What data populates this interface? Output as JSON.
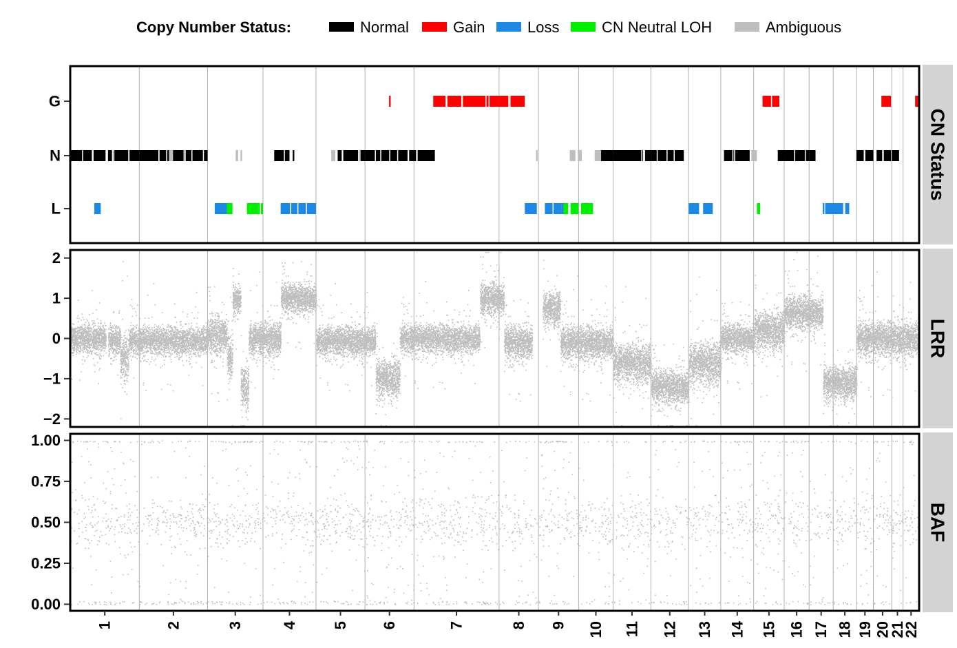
{
  "chart_data": {
    "type": "scatter",
    "legend": {
      "title": "Copy Number Status:",
      "placement": "top",
      "items": [
        {
          "label": "Normal",
          "color": "#000000"
        },
        {
          "label": "Gain",
          "color": "#ff0000"
        },
        {
          "label": "Loss",
          "color": "#1e88e5"
        },
        {
          "label": "CN Neutral LOH",
          "color": "#00ee00"
        },
        {
          "label": "Ambiguous",
          "color": "#bebebe"
        }
      ]
    },
    "colors": {
      "Normal": "#000000",
      "Gain": "#ff0000",
      "Loss": "#1e88e5",
      "LOH": "#00ee00",
      "Ambiguous": "#bebebe",
      "points": "#bebebe",
      "grid": "#b0b0b0",
      "strip_bg": "#d3d3d3"
    },
    "x_axis": {
      "type": "genome",
      "range": [
        0,
        1000
      ],
      "chromosomes": [
        {
          "name": "1",
          "end": 86
        },
        {
          "name": "2",
          "end": 171
        },
        {
          "name": "3",
          "end": 240
        },
        {
          "name": "4",
          "end": 306
        },
        {
          "name": "5",
          "end": 367
        },
        {
          "name": "6",
          "end": 428
        },
        {
          "name": "7",
          "end": 534
        },
        {
          "name": "8",
          "end": 583
        },
        {
          "name": "9",
          "end": 633
        },
        {
          "name": "10",
          "end": 676
        },
        {
          "name": "11",
          "end": 723
        },
        {
          "name": "12",
          "end": 770
        },
        {
          "name": "13",
          "end": 810
        },
        {
          "name": "14",
          "end": 851
        },
        {
          "name": "15",
          "end": 889
        },
        {
          "name": "16",
          "end": 920
        },
        {
          "name": "17",
          "end": 950
        },
        {
          "name": "18",
          "end": 979
        },
        {
          "name": "19",
          "end": 1000
        },
        {
          "name": "20",
          "end": 1023
        },
        {
          "name": "21",
          "end": 1037
        },
        {
          "name": "22",
          "end": 1057
        }
      ],
      "genome_end": 1057
    },
    "panels": [
      {
        "strip": "CN Status",
        "y_ticks": [
          "L",
          "N",
          "G"
        ],
        "segments": [
          {
            "status": "Normal",
            "start": 0,
            "end": 44
          },
          {
            "status": "Normal",
            "start": 47,
            "end": 52
          },
          {
            "status": "Ambiguous",
            "start": 53,
            "end": 55
          },
          {
            "status": "Normal",
            "start": 55,
            "end": 72
          },
          {
            "status": "Ambiguous",
            "start": 72,
            "end": 74
          },
          {
            "status": "Normal",
            "start": 74,
            "end": 86
          },
          {
            "status": "Normal",
            "start": 86,
            "end": 123
          },
          {
            "status": "Ambiguous",
            "start": 123,
            "end": 128
          },
          {
            "status": "Normal",
            "start": 128,
            "end": 141
          },
          {
            "status": "Ambiguous",
            "start": 141,
            "end": 144
          },
          {
            "status": "Normal",
            "start": 144,
            "end": 171
          },
          {
            "status": "Ambiguous",
            "start": 206,
            "end": 209
          },
          {
            "status": "Ambiguous",
            "start": 212,
            "end": 214
          },
          {
            "status": "Normal",
            "start": 254,
            "end": 273
          },
          {
            "status": "Normal",
            "start": 277,
            "end": 279
          },
          {
            "status": "Ambiguous",
            "start": 325,
            "end": 330
          },
          {
            "status": "Normal",
            "start": 333,
            "end": 338
          },
          {
            "status": "Normal",
            "start": 340,
            "end": 367
          },
          {
            "status": "Normal",
            "start": 367,
            "end": 420
          },
          {
            "status": "Normal",
            "start": 422,
            "end": 454
          },
          {
            "status": "Ambiguous",
            "start": 580,
            "end": 582
          },
          {
            "status": "Ambiguous",
            "start": 622,
            "end": 629
          },
          {
            "status": "Ambiguous",
            "start": 632,
            "end": 637
          },
          {
            "status": "Ambiguous",
            "start": 653,
            "end": 661
          },
          {
            "status": "Normal",
            "start": 661,
            "end": 676
          },
          {
            "status": "Normal",
            "start": 676,
            "end": 723
          },
          {
            "status": "Normal",
            "start": 723,
            "end": 764
          },
          {
            "status": "Normal",
            "start": 814,
            "end": 846
          },
          {
            "status": "Ambiguous",
            "start": 848,
            "end": 855
          },
          {
            "status": "Normal",
            "start": 881,
            "end": 889
          },
          {
            "status": "Normal",
            "start": 889,
            "end": 920
          },
          {
            "status": "Normal",
            "start": 920,
            "end": 928
          },
          {
            "status": "Normal",
            "start": 979,
            "end": 988
          },
          {
            "status": "Normal",
            "start": 990,
            "end": 1000
          },
          {
            "status": "Normal",
            "start": 1004,
            "end": 1011
          },
          {
            "status": "Normal",
            "start": 1013,
            "end": 1022
          },
          {
            "status": "Normal",
            "start": 1023,
            "end": 1032
          },
          {
            "status": "Gain",
            "start": 397,
            "end": 399
          },
          {
            "status": "Gain",
            "start": 452,
            "end": 534
          },
          {
            "status": "Gain",
            "start": 534,
            "end": 566
          },
          {
            "status": "Gain",
            "start": 862,
            "end": 883
          },
          {
            "status": "Gain",
            "start": 1010,
            "end": 1022
          },
          {
            "status": "Gain",
            "start": 1052,
            "end": 1057
          },
          {
            "status": "Loss",
            "start": 30,
            "end": 38
          },
          {
            "status": "Loss",
            "start": 180,
            "end": 195
          },
          {
            "status": "LOH",
            "start": 195,
            "end": 202
          },
          {
            "status": "LOH",
            "start": 220,
            "end": 240
          },
          {
            "status": "Loss",
            "start": 262,
            "end": 306
          },
          {
            "status": "Loss",
            "start": 566,
            "end": 581
          },
          {
            "status": "Loss",
            "start": 591,
            "end": 612
          },
          {
            "status": "Loss",
            "start": 612,
            "end": 618
          },
          {
            "status": "LOH",
            "start": 614,
            "end": 620
          },
          {
            "status": "LOH",
            "start": 623,
            "end": 633
          },
          {
            "status": "LOH",
            "start": 636,
            "end": 651
          },
          {
            "status": "Loss",
            "start": 770,
            "end": 783
          },
          {
            "status": "Loss",
            "start": 788,
            "end": 800
          },
          {
            "status": "LOH",
            "start": 855,
            "end": 859
          },
          {
            "status": "Loss",
            "start": 937,
            "end": 939
          },
          {
            "status": "Loss",
            "start": 940,
            "end": 970
          }
        ]
      },
      {
        "strip": "LRR",
        "ylim": [
          -2.2,
          2.2
        ],
        "y_ticks": [
          -2,
          -1,
          0,
          1,
          2
        ],
        "profile": [
          {
            "start": 0,
            "end": 44,
            "mean": 0.0,
            "sd": 0.3
          },
          {
            "start": 47,
            "end": 62,
            "mean": -0.05,
            "sd": 0.3
          },
          {
            "start": 62,
            "end": 72,
            "mean": -0.45,
            "sd": 0.5
          },
          {
            "start": 72,
            "end": 171,
            "mean": -0.05,
            "sd": 0.3
          },
          {
            "start": 171,
            "end": 195,
            "mean": 0.1,
            "sd": 0.4
          },
          {
            "start": 195,
            "end": 202,
            "mean": -0.5,
            "sd": 0.5
          },
          {
            "start": 202,
            "end": 212,
            "mean": 0.95,
            "sd": 0.3
          },
          {
            "start": 212,
            "end": 222,
            "mean": -1.2,
            "sd": 0.45
          },
          {
            "start": 222,
            "end": 262,
            "mean": 0.0,
            "sd": 0.35
          },
          {
            "start": 262,
            "end": 306,
            "mean": 1.0,
            "sd": 0.3
          },
          {
            "start": 306,
            "end": 380,
            "mean": -0.05,
            "sd": 0.3
          },
          {
            "start": 380,
            "end": 410,
            "mean": -1.0,
            "sd": 0.4
          },
          {
            "start": 410,
            "end": 510,
            "mean": 0.0,
            "sd": 0.3
          },
          {
            "start": 510,
            "end": 540,
            "mean": 1.0,
            "sd": 0.35
          },
          {
            "start": 540,
            "end": 575,
            "mean": -0.1,
            "sd": 0.35
          },
          {
            "start": 588,
            "end": 610,
            "mean": 0.75,
            "sd": 0.35
          },
          {
            "start": 610,
            "end": 676,
            "mean": -0.1,
            "sd": 0.35
          },
          {
            "start": 676,
            "end": 723,
            "mean": -0.6,
            "sd": 0.4
          },
          {
            "start": 723,
            "end": 770,
            "mean": -1.2,
            "sd": 0.35
          },
          {
            "start": 770,
            "end": 810,
            "mean": -0.6,
            "sd": 0.45
          },
          {
            "start": 810,
            "end": 851,
            "mean": 0.0,
            "sd": 0.3
          },
          {
            "start": 851,
            "end": 889,
            "mean": 0.2,
            "sd": 0.4
          },
          {
            "start": 889,
            "end": 937,
            "mean": 0.65,
            "sd": 0.35
          },
          {
            "start": 937,
            "end": 979,
            "mean": -1.1,
            "sd": 0.35
          },
          {
            "start": 979,
            "end": 1057,
            "mean": 0.0,
            "sd": 0.35
          }
        ]
      },
      {
        "strip": "BAF",
        "ylim": [
          -0.04,
          1.04
        ],
        "y_ticks": [
          "0.00",
          "0.25",
          "0.50",
          "0.75",
          "1.00"
        ],
        "profile": [
          {
            "start": 0,
            "end": 1057,
            "center": 0.5,
            "spread": 0.12
          }
        ]
      }
    ]
  }
}
